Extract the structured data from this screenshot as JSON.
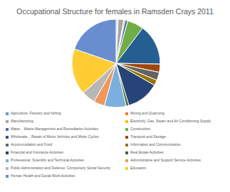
{
  "chart_data": {
    "type": "pie",
    "title": "Occupational Structure for females in Ramsden Crays 2011",
    "categories": [
      "Agriculture, Forestry and fishing",
      "Mining and Quarrying",
      "Manufacturing",
      "Electricity, Gas, Steam and Air Conditioning Supply",
      "Water... Waste Management and Remediation Activities",
      "Construction",
      "Wholesale... Repair of Motor Vehicles and Motor Cycles",
      "Transport and Storage",
      "Accommodation and Food",
      "Information and Communication",
      "Financial and Insurance Activities",
      "Real Estate Activities",
      "Professional, Scientific and Technical Activities",
      "Administrative and Support Service Activities",
      "Public Administration and Defence; Compulsory Social Security",
      "Education",
      "Human Health and Social Work Activities"
    ],
    "values": [
      0.5,
      0.3,
      2,
      0.5,
      1,
      6,
      15,
      3,
      3,
      2,
      12,
      1,
      8,
      4,
      5,
      17,
      19.7
    ],
    "colors": [
      "#5b9bd5",
      "#ed7d31",
      "#a5a5a5",
      "#ffc000",
      "#4472c4",
      "#70ad47",
      "#255e91",
      "#9e480e",
      "#636363",
      "#997300",
      "#264478",
      "#43682b",
      "#7cafdd",
      "#f1975a",
      "#b7b7b7",
      "#ffcd33",
      "#698ed0"
    ],
    "legend": "bottom"
  }
}
